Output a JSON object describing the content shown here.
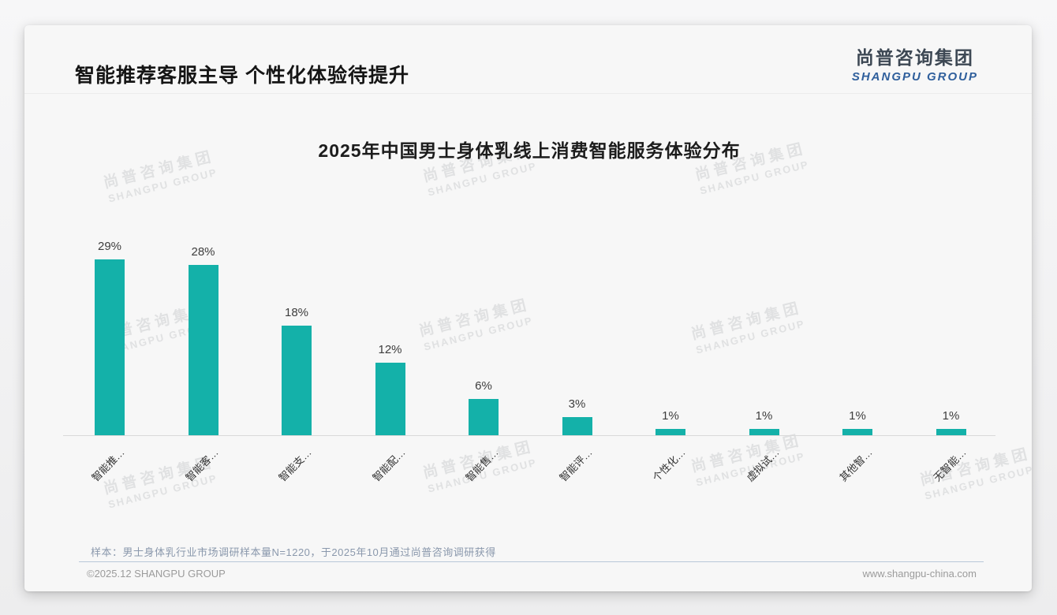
{
  "header": {
    "title": "智能推荐客服主导 个性化体验待提升",
    "logo_cn": "尚普咨询集团",
    "logo_en": "SHANGPU GROUP"
  },
  "watermark": {
    "line1": "尚普咨询集团",
    "line2": "SHANGPU GROUP"
  },
  "chart_data": {
    "type": "bar",
    "title": "2025年中国男士身体乳线上消费智能服务体验分布",
    "categories": [
      "智能推…",
      "智能客…",
      "智能支…",
      "智能配…",
      "智能售…",
      "智能评…",
      "个性化…",
      "虚拟试…",
      "其他智…",
      "无智能…"
    ],
    "values": [
      29,
      28,
      18,
      12,
      6,
      3,
      1,
      1,
      1,
      1
    ],
    "value_labels": [
      "29%",
      "28%",
      "18%",
      "12%",
      "6%",
      "3%",
      "1%",
      "1%",
      "1%",
      "1%"
    ],
    "unit": "%",
    "ylim": [
      0,
      30
    ],
    "grid": false,
    "legend": "none",
    "bar_color": "#14b1a9",
    "x_label_rotation": 45
  },
  "footnote": {
    "text": "样本：男士身体乳行业市场调研样本量N=1220，于2025年10月通过尚普咨询调研获得"
  },
  "footer": {
    "left": "©2025.12 SHANGPU GROUP",
    "right": "www.shangpu-china.com"
  },
  "colors": {
    "bar": "#14b1a9",
    "accent_blue": "#2f5f9c",
    "note_text": "#8a98ac",
    "footer_divider": "#b9c8d8",
    "watermark": "#e0e1e2"
  }
}
